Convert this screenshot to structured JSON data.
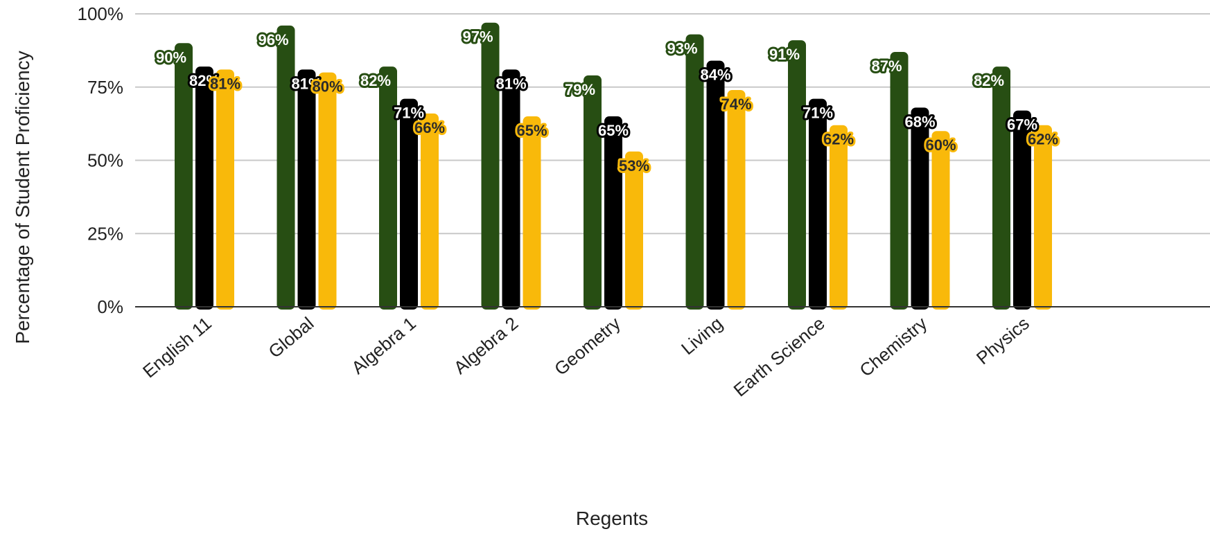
{
  "chart_data": {
    "type": "bar",
    "title": "",
    "xlabel": "Regents",
    "ylabel": "Percentage of Student Proficiency",
    "ylim": [
      0,
      100
    ],
    "yticks": [
      "0%",
      "25%",
      "50%",
      "75%",
      "100%"
    ],
    "categories": [
      "English 11",
      "Global",
      "Algebra 1",
      "Algebra 2",
      "Geometry",
      "Living",
      "Earth Science",
      "Chemistry",
      "Physics"
    ],
    "series": [
      {
        "color": "#274e13",
        "values": [
          90,
          96,
          82,
          97,
          79,
          93,
          91,
          87,
          82
        ],
        "labels": [
          "90%",
          "96%",
          "82%",
          "97%",
          "79%",
          "93%",
          "91%",
          "87%",
          "82%"
        ]
      },
      {
        "color": "#000000",
        "values": [
          82,
          81,
          71,
          81,
          65,
          84,
          71,
          68,
          67
        ],
        "labels": [
          "82%",
          "81%",
          "71%",
          "81%",
          "65%",
          "84%",
          "71%",
          "68%",
          "67%"
        ]
      },
      {
        "color": "#f9b90a",
        "values": [
          81,
          80,
          66,
          65,
          53,
          74,
          62,
          60,
          62
        ],
        "labels": [
          "81%",
          "80%",
          "66%",
          "65%",
          "53%",
          "74%",
          "62%",
          "60%",
          "62%"
        ]
      }
    ],
    "grid": true,
    "legend": "none"
  }
}
